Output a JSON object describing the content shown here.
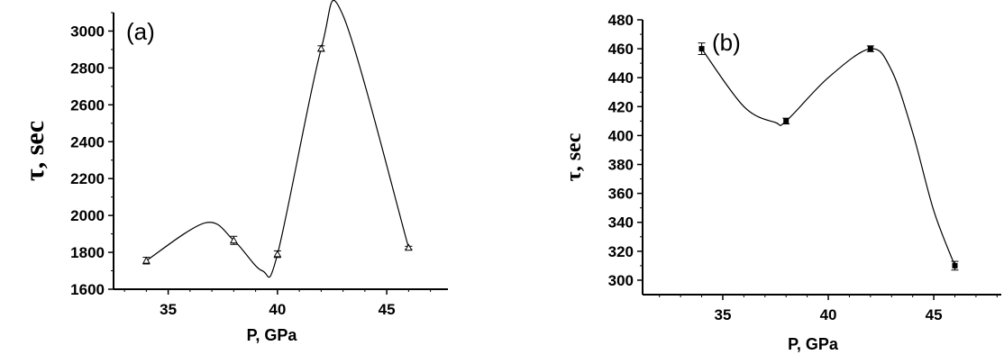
{
  "chart_data": [
    {
      "type": "scatter",
      "panel_label": "(a)",
      "xlabel": "P, GPa",
      "ylabel": "τ, sec",
      "xlim": [
        32.5,
        47.8
      ],
      "ylim": [
        1600,
        3100
      ],
      "xticks": [
        35,
        40,
        45
      ],
      "yticks": [
        1600,
        1800,
        2000,
        2200,
        2400,
        2600,
        2800,
        3000
      ],
      "marker": "open-triangle",
      "points": [
        {
          "x": 34,
          "y": 1755,
          "err": 18
        },
        {
          "x": 38,
          "y": 1865,
          "err": 22
        },
        {
          "x": 40,
          "y": 1790,
          "err": 18
        },
        {
          "x": 42,
          "y": 2905,
          "err": 15
        },
        {
          "x": 46,
          "y": 1825,
          "err": 8
        }
      ],
      "fit_curve": {
        "x": [
          34,
          36.7,
          38,
          39.3,
          40,
          42,
          43,
          46
        ],
        "y": [
          1755,
          1960,
          1865,
          1700,
          1790,
          2905,
          3085,
          1825
        ]
      }
    },
    {
      "type": "scatter",
      "panel_label": "(b)",
      "xlabel": "P, GPa",
      "ylabel": "τ, sec",
      "xlim": [
        31.2,
        48.2
      ],
      "ylim": [
        290,
        480
      ],
      "xticks": [
        35,
        40,
        45
      ],
      "yticks": [
        300,
        320,
        340,
        360,
        380,
        400,
        420,
        440,
        460,
        480
      ],
      "marker": "filled-square",
      "points": [
        {
          "x": 34,
          "y": 460,
          "err": 4
        },
        {
          "x": 38,
          "y": 410,
          "err": 2
        },
        {
          "x": 42,
          "y": 460,
          "err": 2
        },
        {
          "x": 46,
          "y": 310,
          "err": 3
        }
      ],
      "fit_curve": {
        "x": [
          34,
          36,
          37.5,
          38,
          40,
          42,
          43,
          44,
          45,
          46
        ],
        "y": [
          460,
          420,
          409,
          410,
          440,
          460,
          445,
          402,
          348,
          310
        ]
      }
    }
  ]
}
